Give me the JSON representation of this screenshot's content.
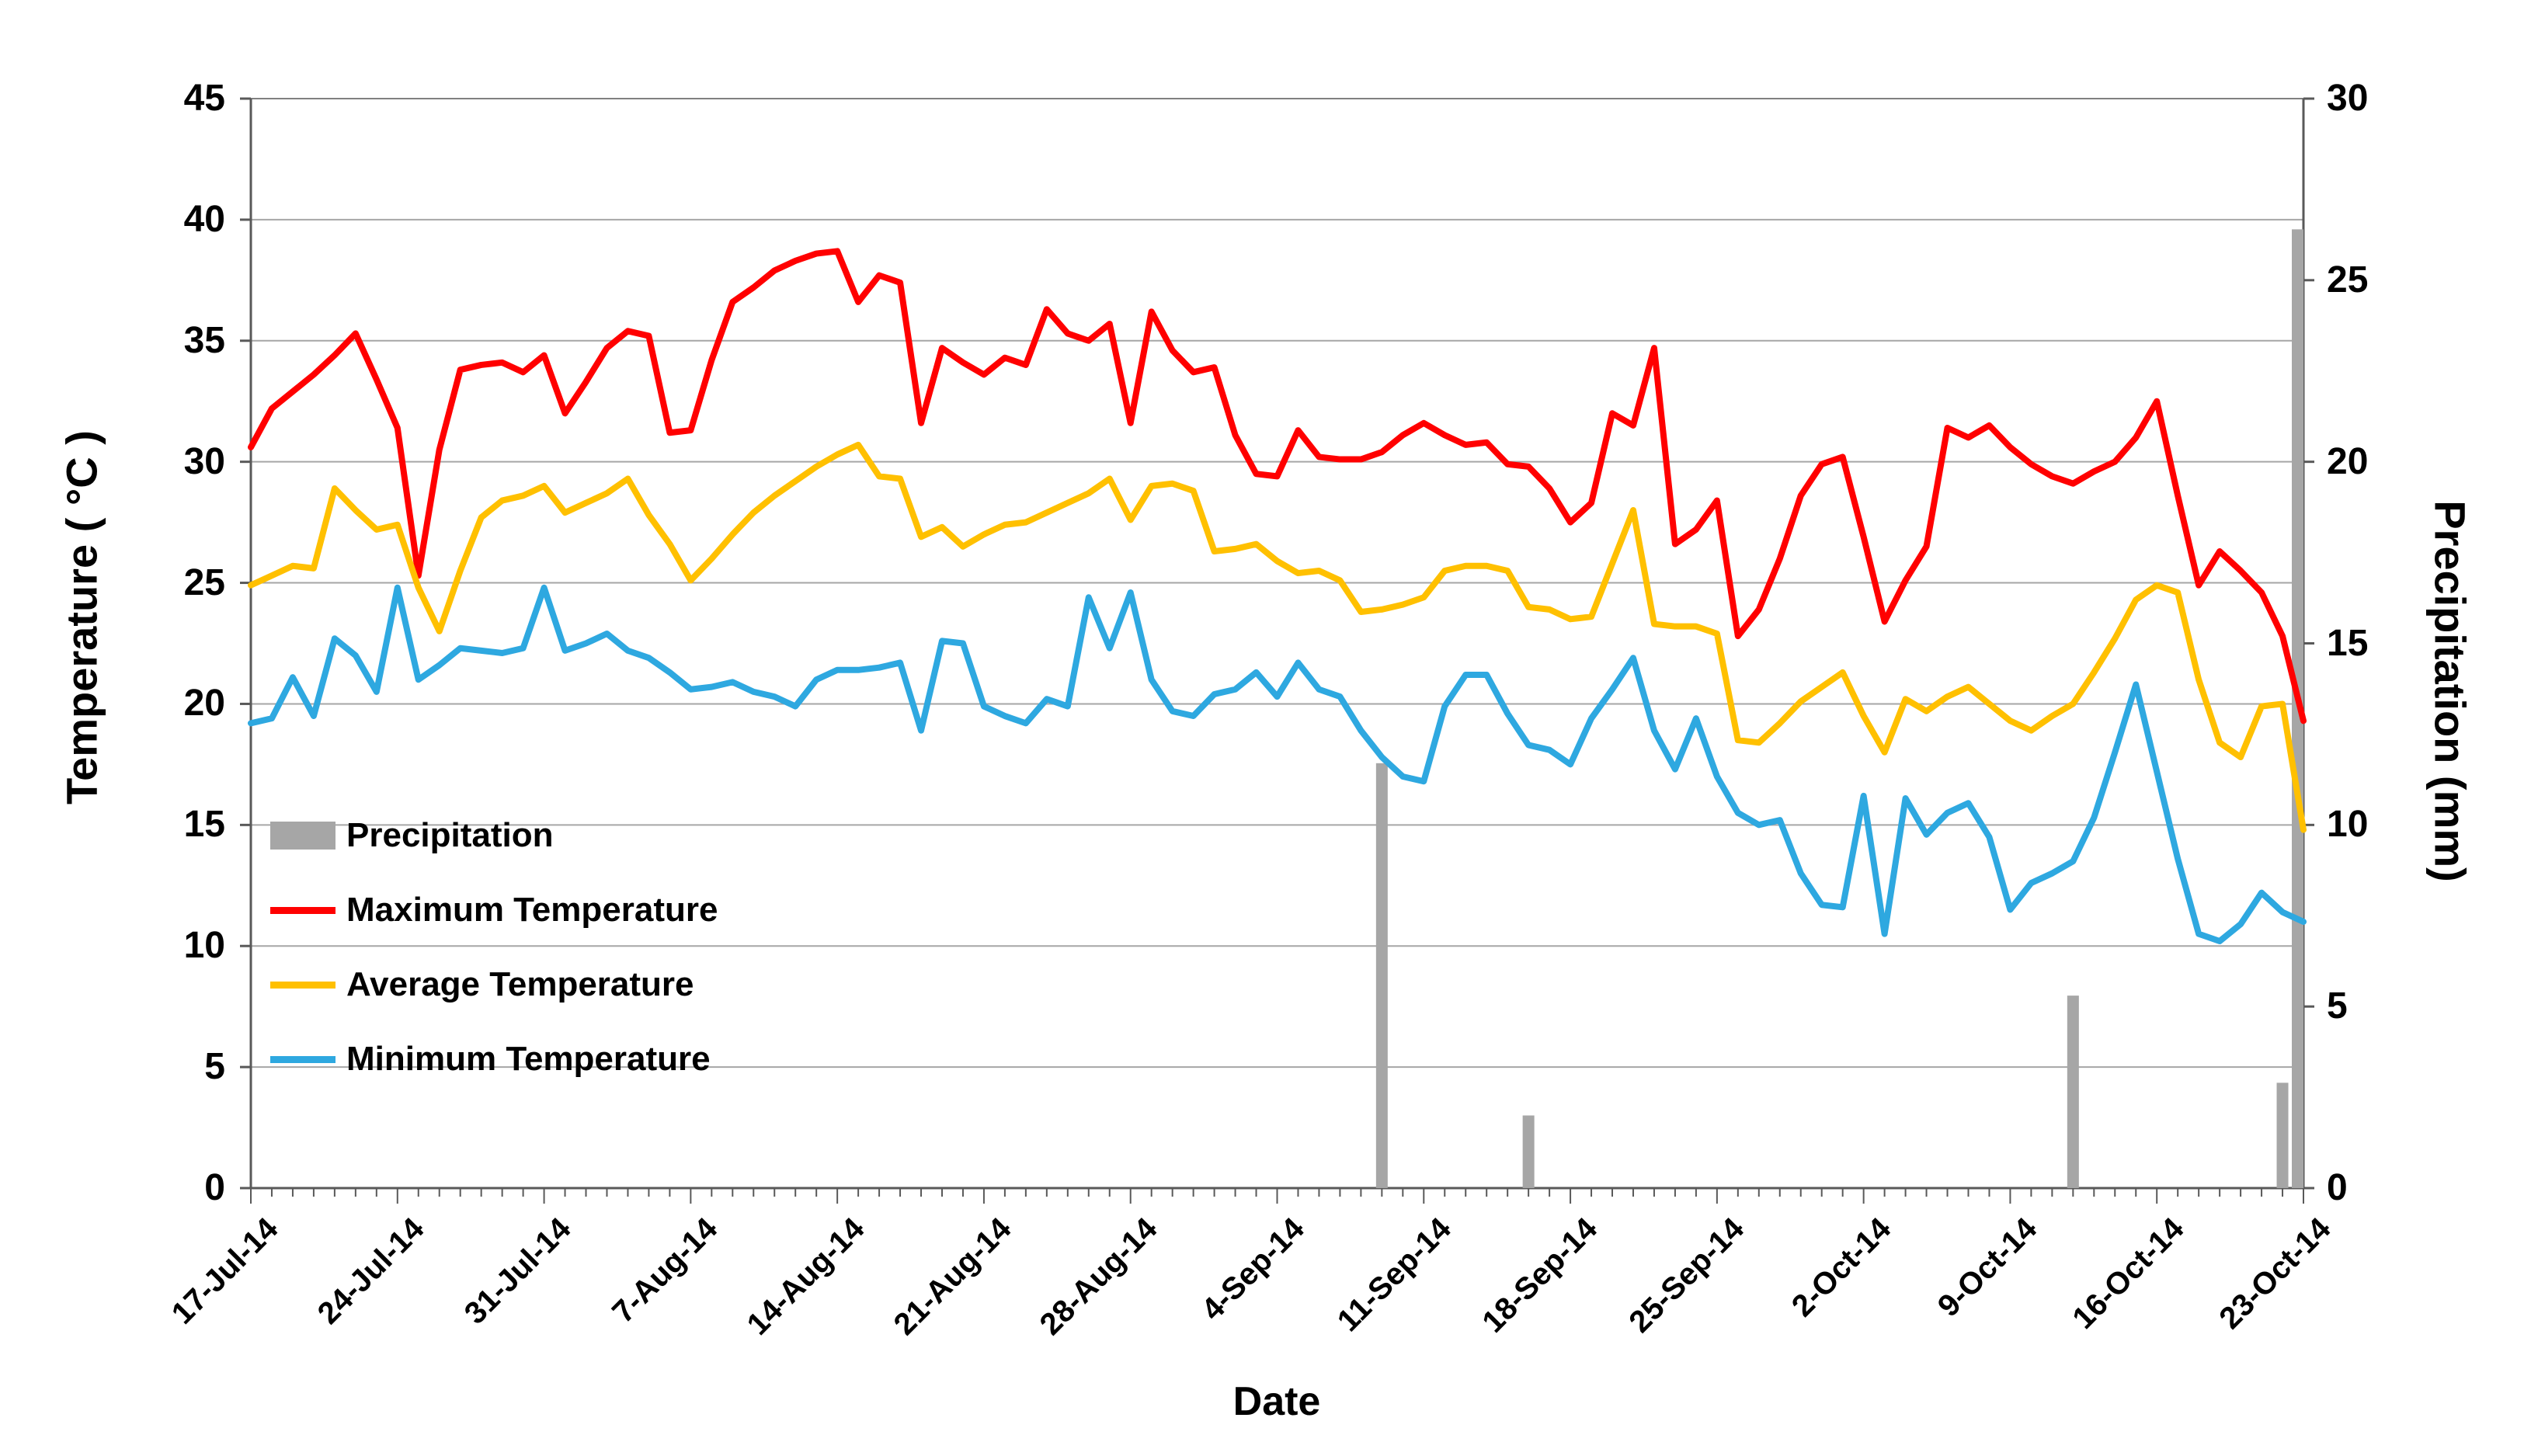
{
  "chart_data": {
    "type": "line+bar combo",
    "n_points": 99,
    "x_axis": {
      "title": "Date",
      "tick_every_days": 7
    },
    "x_tick_labels": [
      "17-Jul-14",
      "24-Jul-14",
      "31-Jul-14",
      "7-Aug-14",
      "14-Aug-14",
      "21-Aug-14",
      "28-Aug-14",
      "4-Sep-14",
      "11-Sep-14",
      "18-Sep-14",
      "25-Sep-14",
      "2-Oct-14",
      "9-Oct-14",
      "16-Oct-14",
      "23-Oct-14"
    ],
    "left_axis": {
      "title": "Temperature ( °C )",
      "min": 0,
      "max": 45,
      "step": 5,
      "tick_labels": [
        "0",
        "5",
        "10",
        "15",
        "20",
        "25",
        "30",
        "35",
        "40",
        "45"
      ]
    },
    "right_axis": {
      "title": "Precipitation (mm)",
      "min": 0,
      "max": 30,
      "step": 5,
      "tick_labels": [
        "0",
        "5",
        "10",
        "15",
        "20",
        "25",
        "30"
      ]
    },
    "legend_position": "inside-left-middle",
    "grid": true,
    "colors": {
      "max": "#FF0000",
      "avg": "#FFC000",
      "min": "#2EA8E0",
      "precip": "#A6A6A6",
      "gridline": "#A6A6A6",
      "axis": "#595959",
      "border": "#808080",
      "text": "#000000"
    },
    "series": [
      {
        "name": "Precipitation",
        "type": "bar",
        "axis": "right",
        "color": "#A6A6A6",
        "values": [
          0,
          0,
          0,
          0,
          0,
          0,
          0,
          0,
          0,
          0,
          0,
          0,
          0,
          0,
          0,
          0,
          0,
          0,
          0,
          0,
          0,
          0,
          0,
          0,
          0,
          0,
          0,
          0,
          0,
          0,
          0,
          0,
          0,
          0,
          0,
          0,
          0,
          0,
          0,
          0,
          0,
          0,
          0,
          0,
          0,
          0,
          0,
          0,
          0,
          0,
          0,
          0,
          0,
          0,
          11.7,
          0,
          0,
          0,
          0,
          0,
          0,
          2,
          0,
          0,
          0,
          0,
          0,
          0,
          0,
          0,
          0,
          0,
          0,
          0,
          0,
          0,
          0,
          0,
          0,
          0,
          0,
          0,
          0,
          0,
          0,
          0,
          0,
          5.3,
          0,
          0,
          0,
          0,
          0,
          0,
          0,
          0,
          0,
          2.9,
          26.4
        ]
      },
      {
        "name": "Maximum Temperature",
        "type": "line",
        "axis": "left",
        "color": "#FF0000",
        "values": [
          30.6,
          32.2,
          32.9,
          33.6,
          34.4,
          35.3,
          33.4,
          31.4,
          25.3,
          30.5,
          33.8,
          34,
          34.1,
          33.7,
          34.4,
          32,
          33.3,
          34.7,
          35.4,
          35.2,
          31.2,
          31.3,
          34.2,
          36.6,
          37.2,
          37.9,
          38.3,
          38.6,
          38.7,
          36.6,
          37.7,
          37.4,
          31.6,
          34.7,
          34.1,
          33.6,
          34.3,
          34,
          36.3,
          35.3,
          35,
          35.7,
          31.6,
          36.2,
          34.6,
          33.7,
          33.9,
          31.1,
          29.5,
          29.4,
          31.3,
          30.2,
          30.1,
          30.1,
          30.4,
          31.1,
          31.6,
          31.1,
          30.7,
          30.8,
          29.9,
          29.8,
          28.9,
          27.5,
          28.3,
          32,
          31.5,
          34.7,
          26.6,
          27.2,
          28.4,
          22.8,
          23.9,
          26,
          28.6,
          29.9,
          30.2,
          26.9,
          23.4,
          25.1,
          26.5,
          31.4,
          31,
          31.5,
          30.6,
          29.9,
          29.4,
          29.1,
          29.6,
          30,
          31,
          32.5,
          28.6,
          24.9,
          26.3,
          25.5,
          24.6,
          22.8,
          19.3
        ]
      },
      {
        "name": "Average Temperature",
        "type": "line",
        "axis": "left",
        "color": "#FFC000",
        "values": [
          24.9,
          25.3,
          25.7,
          25.6,
          28.9,
          28,
          27.2,
          27.4,
          24.8,
          23,
          25.5,
          27.7,
          28.4,
          28.6,
          29,
          27.9,
          28.3,
          28.7,
          29.3,
          27.8,
          26.6,
          25.1,
          26,
          27,
          27.9,
          28.6,
          29.2,
          29.8,
          30.3,
          30.7,
          29.4,
          29.3,
          26.9,
          27.3,
          26.5,
          27,
          27.4,
          27.5,
          27.9,
          28.3,
          28.7,
          29.3,
          27.6,
          29,
          29.1,
          28.8,
          26.3,
          26.4,
          26.6,
          25.9,
          25.4,
          25.5,
          25.1,
          23.8,
          23.9,
          24.1,
          24.4,
          25.5,
          25.7,
          25.7,
          25.5,
          24,
          23.9,
          23.5,
          23.6,
          25.8,
          28,
          23.3,
          23.2,
          23.2,
          22.9,
          18.5,
          18.4,
          19.2,
          20.1,
          20.7,
          21.3,
          19.5,
          18,
          20.2,
          19.7,
          20.3,
          20.7,
          20,
          19.3,
          18.9,
          19.5,
          20,
          21.3,
          22.7,
          24.3,
          24.9,
          24.6,
          21,
          18.4,
          17.8,
          19.9,
          20,
          14.8
        ]
      },
      {
        "name": "Minimum Temperature",
        "type": "line",
        "axis": "left",
        "color": "#2EA8E0",
        "values": [
          19.2,
          19.4,
          21.1,
          19.5,
          22.7,
          22,
          20.5,
          24.8,
          21,
          21.6,
          22.3,
          22.2,
          22.1,
          22.3,
          24.8,
          22.2,
          22.5,
          22.9,
          22.2,
          21.9,
          21.3,
          20.6,
          20.7,
          20.9,
          20.5,
          20.3,
          19.9,
          21,
          21.4,
          21.4,
          21.5,
          21.7,
          18.9,
          22.6,
          22.5,
          19.9,
          19.5,
          19.2,
          20.2,
          19.9,
          24.4,
          22.3,
          24.6,
          21,
          19.7,
          19.5,
          20.4,
          20.6,
          21.3,
          20.3,
          21.7,
          20.6,
          20.3,
          18.9,
          17.8,
          17,
          16.8,
          19.9,
          21.2,
          21.2,
          19.6,
          18.3,
          18.1,
          17.5,
          19.4,
          20.6,
          21.9,
          18.9,
          17.3,
          19.4,
          17,
          15.5,
          15,
          15.2,
          13,
          11.7,
          11.6,
          16.2,
          10.5,
          16.1,
          14.6,
          15.5,
          15.9,
          14.5,
          11.5,
          12.6,
          13,
          13.5,
          15.3,
          18,
          20.8,
          17.2,
          13.6,
          10.5,
          10.2,
          10.9,
          12.2,
          11.4,
          11
        ]
      }
    ],
    "legend": [
      {
        "label": "Precipitation",
        "swatch": "bar",
        "color": "#A6A6A6"
      },
      {
        "label": "Maximum Temperature",
        "swatch": "line",
        "color": "#FF0000"
      },
      {
        "label": "Average Temperature",
        "swatch": "line",
        "color": "#FFC000"
      },
      {
        "label": "Minimum Temperature",
        "swatch": "line",
        "color": "#2EA8E0"
      }
    ]
  }
}
